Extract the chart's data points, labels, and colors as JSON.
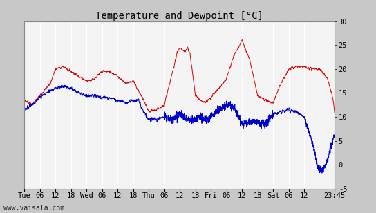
{
  "title": "Temperature and Dewpoint [°C]",
  "ylabel_right_ticks": [
    30,
    25,
    20,
    15,
    10,
    5,
    0,
    -5
  ],
  "ylim": [
    -5,
    30
  ],
  "xlim_hours": [
    0,
    119.75
  ],
  "x_tick_labels": [
    "Tue",
    "06",
    "12",
    "18",
    "Wed",
    "06",
    "12",
    "18",
    "Thu",
    "06",
    "12",
    "18",
    "Fri",
    "06",
    "12",
    "18",
    "Sat",
    "06",
    "12",
    "23:45"
  ],
  "x_tick_positions": [
    0,
    6,
    12,
    18,
    24,
    30,
    36,
    42,
    48,
    54,
    60,
    66,
    72,
    78,
    84,
    90,
    96,
    102,
    108,
    119.75
  ],
  "outer_bg_color": "#c8c8c8",
  "plot_bg_color": "#f4f4f4",
  "right_panel_color": "#c8c8c8",
  "temp_color": "#dd0000",
  "dew_color": "#0000cc",
  "grid_color": "#ffffff",
  "watermark": "www.vaisala.com",
  "title_fontsize": 10,
  "tick_fontsize": 7.5,
  "watermark_fontsize": 7
}
